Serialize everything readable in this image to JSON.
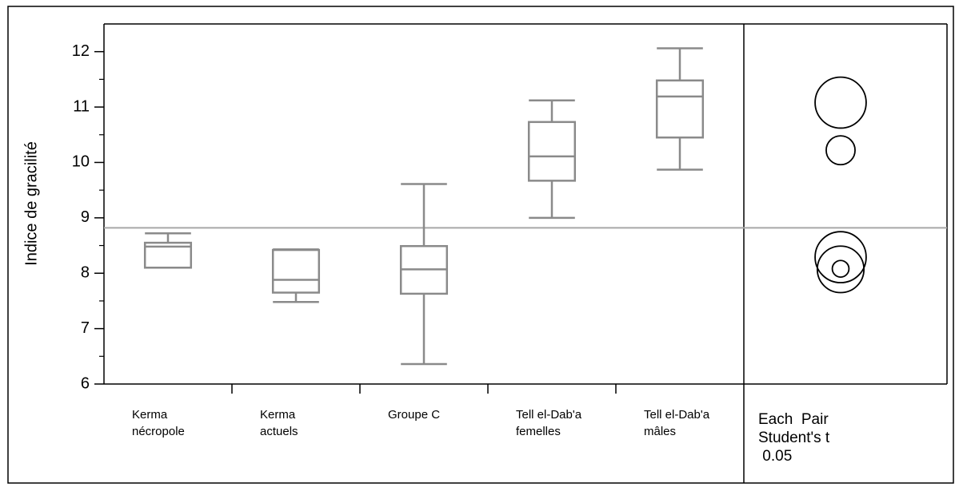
{
  "chart_data": {
    "type": "box",
    "ylabel": "Indice de gracilité",
    "categories": [
      "Kerma\nnécropole",
      "Kerma\nactuels",
      "Groupe C",
      "Tell el-Dab'a\nfemelles",
      "Tell el-Dab'a\nmâles"
    ],
    "series": [
      {
        "color": "#8a8a8a",
        "min": [
          8.1,
          7.48,
          6.36,
          9.0,
          9.87
        ],
        "q1": [
          8.1,
          7.65,
          7.63,
          9.67,
          10.45
        ],
        "median": [
          8.48,
          7.88,
          8.07,
          10.11,
          11.19
        ],
        "q3": [
          8.55,
          8.42,
          8.49,
          10.73,
          11.48
        ],
        "max": [
          8.72,
          8.43,
          9.61,
          11.12,
          12.06
        ]
      }
    ],
    "mean_line": 8.82,
    "mean_line_color": "#a8a8a8",
    "ylim": [
      6,
      12.5
    ],
    "yticks": [
      6,
      7,
      8,
      9,
      10,
      11,
      12
    ],
    "minor_yticks": [
      6.5,
      7.5,
      8.5,
      9.5,
      10.5,
      11.5
    ],
    "comparison_label": "Each  Pair\nStudent's t\n 0.05",
    "comparison_circles": [
      {
        "center": 11.08,
        "radius": 0.46
      },
      {
        "center": 10.22,
        "radius": 0.26
      },
      {
        "center": 8.29,
        "radius": 0.46
      },
      {
        "center": 8.07,
        "radius": 0.42
      },
      {
        "center": 8.08,
        "radius": 0.15
      }
    ]
  }
}
